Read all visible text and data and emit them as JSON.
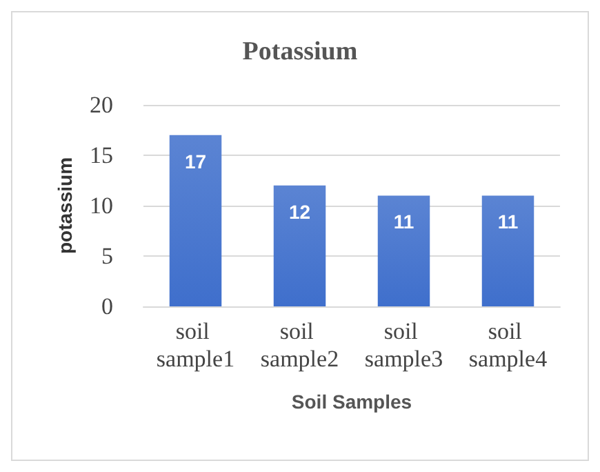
{
  "chart_data": {
    "type": "bar",
    "title": "Potassium",
    "xlabel": "Soil Samples",
    "ylabel": "potassium",
    "categories": [
      "soil sample1",
      "soil sample2",
      "soil sample3",
      "soil sample4"
    ],
    "values": [
      17,
      12,
      11,
      11
    ],
    "color": "#3f6fcc",
    "ylim": [
      0,
      20
    ],
    "yticks": [
      0,
      5,
      10,
      15,
      20
    ],
    "grid": "y",
    "data_labels": true
  }
}
